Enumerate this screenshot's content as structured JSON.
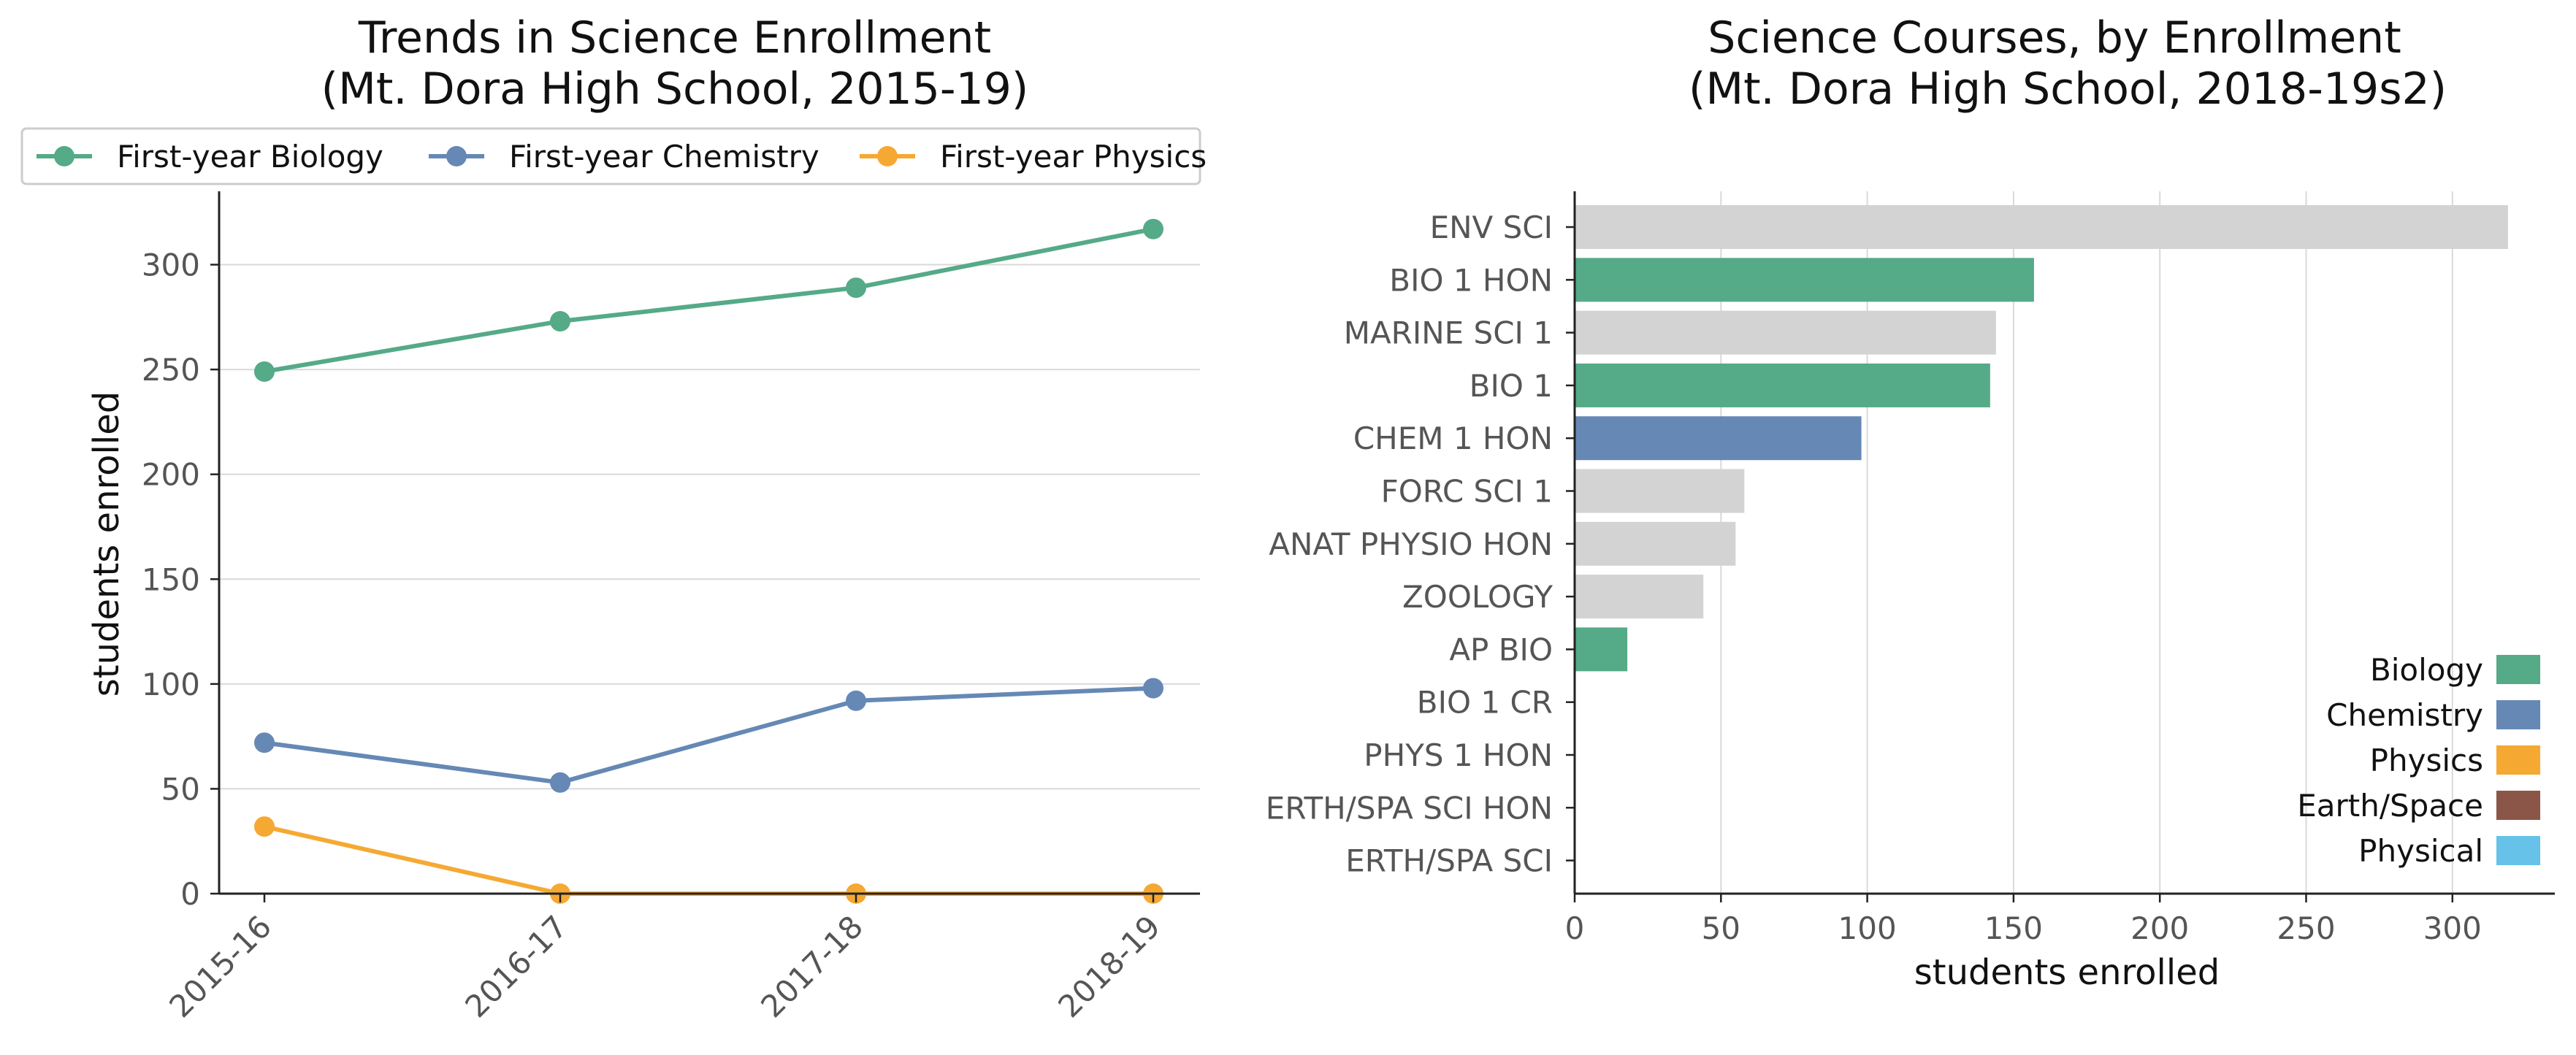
{
  "chart_data": [
    {
      "type": "line",
      "title_line1": "Trends in Science Enrollment",
      "title_line2": "(Mt. Dora High School, 2015-19)",
      "xlabel": "",
      "ylabel": "students enrolled",
      "categories": [
        "2015-16",
        "2016-17",
        "2017-18",
        "2018-19"
      ],
      "ylim": [
        0,
        335
      ],
      "yticks": [
        0,
        50,
        100,
        150,
        200,
        250,
        300
      ],
      "grid": "horizontal",
      "legend_position": "top",
      "series": [
        {
          "name": "First-year Biology",
          "color": "#55AA88",
          "values": [
            249,
            273,
            289,
            317
          ]
        },
        {
          "name": "First-year Chemistry",
          "color": "#6688B5",
          "values": [
            72,
            53,
            92,
            98
          ]
        },
        {
          "name": "First-year Physics",
          "color": "#F5A933",
          "values": [
            32,
            0,
            0,
            0
          ]
        }
      ]
    },
    {
      "type": "bar",
      "orientation": "horizontal",
      "title_line1": "Science Courses, by Enrollment",
      "title_line2": "(Mt. Dora High School, 2018-19s2)",
      "xlabel": "students enrolled",
      "ylabel": "",
      "xlim": [
        0,
        335
      ],
      "xticks": [
        0,
        50,
        100,
        150,
        200,
        250,
        300
      ],
      "grid": "vertical",
      "legend_position": "lower-right",
      "categories": [
        "ENV SCI",
        "BIO 1 HON",
        "MARINE SCI 1",
        "BIO 1",
        "CHEM 1 HON",
        "FORC SCI 1",
        "ANAT PHYSIO HON",
        "ZOOLOGY",
        "AP BIO",
        "BIO 1 CR",
        "PHYS 1 HON",
        "ERTH/SPA SCI HON",
        "ERTH/SPA SCI"
      ],
      "values": [
        319,
        157,
        144,
        142,
        98,
        58,
        55,
        44,
        18,
        0,
        0,
        0,
        0
      ],
      "bar_groups": [
        "other",
        "Biology",
        "other",
        "Biology",
        "Chemistry",
        "other",
        "other",
        "other",
        "Biology",
        "Biology",
        "Physics",
        "Earth/Space",
        "Earth/Space"
      ],
      "other_color": "#D3D3D3",
      "legend": [
        {
          "name": "Biology",
          "color": "#55AA88"
        },
        {
          "name": "Chemistry",
          "color": "#6688B5"
        },
        {
          "name": "Physics",
          "color": "#F5A933"
        },
        {
          "name": "Earth/Space",
          "color": "#8B5548"
        },
        {
          "name": "Physical",
          "color": "#66C2E8"
        }
      ]
    }
  ]
}
